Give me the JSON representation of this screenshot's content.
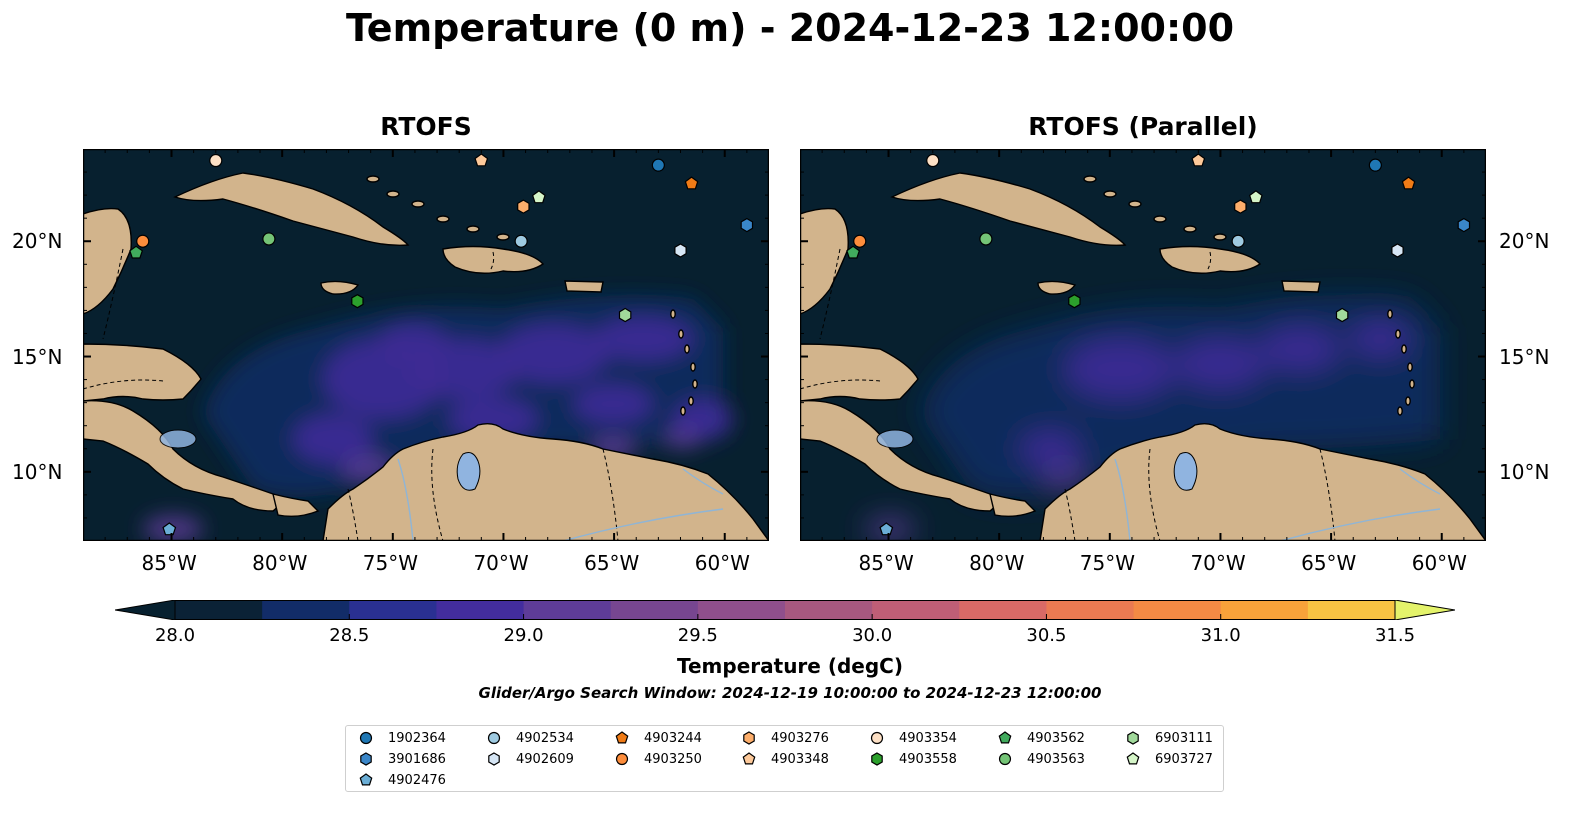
{
  "title": "Temperature (0 m) - 2024-12-23 12:00:00",
  "panels": [
    {
      "title": "RTOFS"
    },
    {
      "title": "RTOFS (Parallel)"
    }
  ],
  "x_ticks": [
    "85°W",
    "80°W",
    "75°W",
    "70°W",
    "65°W",
    "60°W"
  ],
  "y_ticks": [
    "20°N",
    "15°N",
    "10°N"
  ],
  "map_extent": {
    "lon": [
      -89,
      -58
    ],
    "lat": [
      7,
      24
    ]
  },
  "colors": {
    "land": "#d2b48c",
    "lakes": "#90b4e0",
    "ocean_cold": "#07202f",
    "ocean_mid": "#0e2a5c",
    "ocean_warm": "#3c2a94"
  },
  "colorbar": {
    "title": "Temperature (degC)",
    "min": 28.0,
    "max": 31.5,
    "tick_labels": [
      "28.0",
      "28.5",
      "29.0",
      "29.5",
      "30.0",
      "30.5",
      "31.0",
      "31.5"
    ],
    "colors": [
      "#0b2236",
      "#122c68",
      "#2a3092",
      "#432d9e",
      "#5e3c98",
      "#774690",
      "#8f4f8c",
      "#a7587f",
      "#bf5e76",
      "#d96a66",
      "#ea7a52",
      "#f48a44",
      "#f8a23a",
      "#f7c443"
    ],
    "extend_low": "#07202f",
    "extend_high": "#e4f36b"
  },
  "search_window": "Glider/Argo Search Window: 2024-12-19 10:00:00 to 2024-12-23 12:00:00",
  "floats": [
    {
      "id": "1902364",
      "marker": "circle",
      "color": "#1f77b4",
      "lon": -63.0,
      "lat": 23.3
    },
    {
      "id": "3901686",
      "marker": "hexagon",
      "color": "#3a86c8",
      "lon": -59.0,
      "lat": 20.7
    },
    {
      "id": "4902476",
      "marker": "pentagon",
      "color": "#6baed6",
      "lon": -85.1,
      "lat": 7.5
    },
    {
      "id": "4902534",
      "marker": "circle",
      "color": "#9ecae1",
      "lon": -69.2,
      "lat": 20.0
    },
    {
      "id": "4902609",
      "marker": "hexagon",
      "color": "#d6e6f5",
      "lon": -62.0,
      "lat": 19.6
    },
    {
      "id": "4903244",
      "marker": "pentagon",
      "color": "#f07b16",
      "lon": -61.5,
      "lat": 22.5
    },
    {
      "id": "4903250",
      "marker": "circle",
      "color": "#fd8d3c",
      "lon": -86.3,
      "lat": 20.0
    },
    {
      "id": "4903276",
      "marker": "hexagon",
      "color": "#fdae6b",
      "lon": -69.1,
      "lat": 21.5
    },
    {
      "id": "4903348",
      "marker": "pentagon",
      "color": "#fdc99a",
      "lon": -71.0,
      "lat": 23.5
    },
    {
      "id": "4903354",
      "marker": "circle",
      "color": "#fde0c5",
      "lon": -83.0,
      "lat": 23.5
    },
    {
      "id": "4903558",
      "marker": "hexagon",
      "color": "#2ca02c",
      "lon": -76.6,
      "lat": 17.4
    },
    {
      "id": "4903562",
      "marker": "pentagon",
      "color": "#41ab5d",
      "lon": -86.6,
      "lat": 19.5
    },
    {
      "id": "4903563",
      "marker": "circle",
      "color": "#74c476",
      "lon": -80.6,
      "lat": 20.1
    },
    {
      "id": "6903111",
      "marker": "hexagon",
      "color": "#a1d99b",
      "lon": -64.5,
      "lat": 16.8
    },
    {
      "id": "6903727",
      "marker": "pentagon",
      "color": "#d5f5c8",
      "lon": -68.4,
      "lat": 21.9
    }
  ]
}
